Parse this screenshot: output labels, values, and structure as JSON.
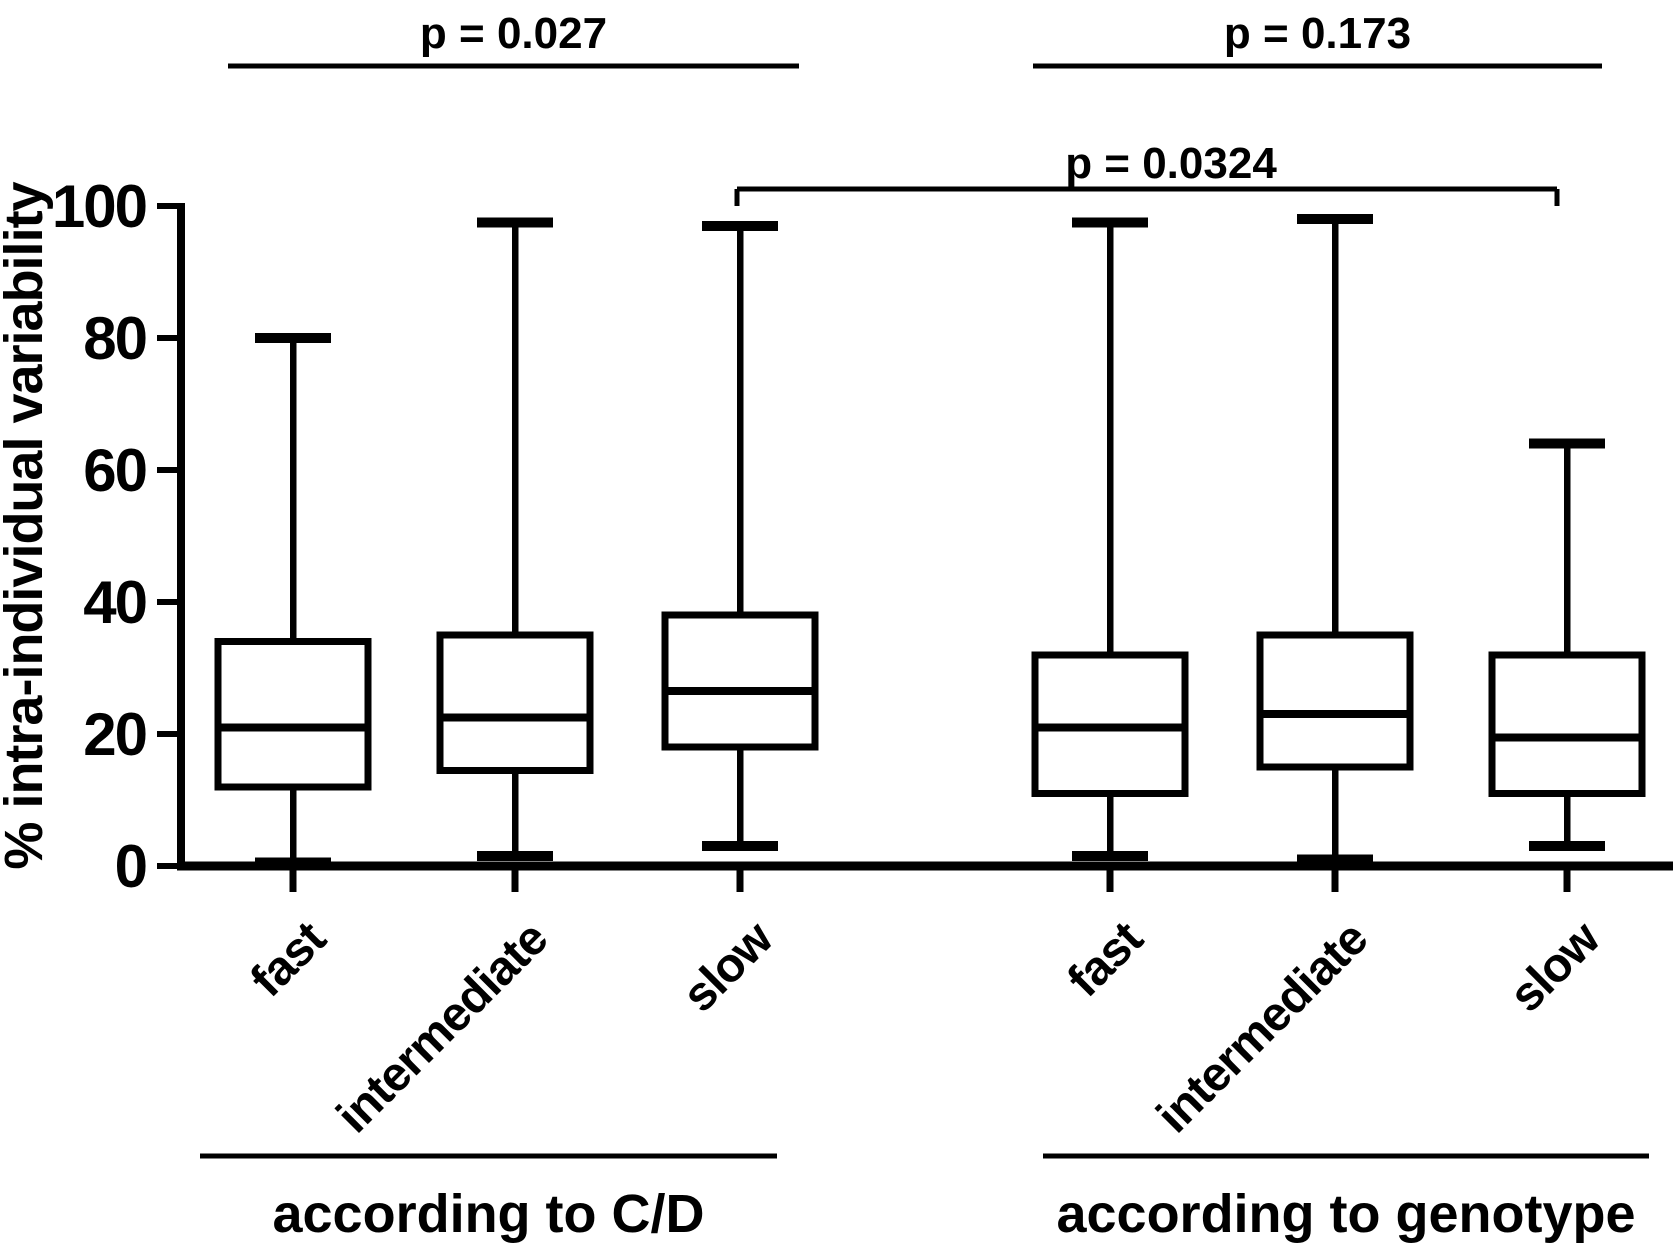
{
  "figure": {
    "background": "#ffffff",
    "ink_color": "#000000"
  },
  "chart_data": {
    "type": "boxplot",
    "title": "",
    "ylabel": "% intra-individual variability",
    "xlabel": "",
    "ylim": [
      0,
      100
    ],
    "yticks": [
      0,
      20,
      40,
      60,
      80,
      100
    ],
    "grid": false,
    "legend": "none",
    "groups": [
      {
        "label": "according to C/D",
        "p_value_label": "p = 0.027"
      },
      {
        "label": "according to genotype",
        "p_value_label": "p = 0.173"
      }
    ],
    "cross_group_comparison": {
      "label": "p = 0.0324",
      "from_category": "slow (according to C/D)",
      "to_category": "slow (according to genotype)"
    },
    "boxes": [
      {
        "group": "according to C/D",
        "category": "fast",
        "whisker_low": 0.5,
        "q1": 12.0,
        "median": 21.0,
        "q3": 34.0,
        "whisker_high": 80.0
      },
      {
        "group": "according to C/D",
        "category": "intermediate",
        "whisker_low": 1.5,
        "q1": 14.5,
        "median": 22.5,
        "q3": 35.0,
        "whisker_high": 97.5
      },
      {
        "group": "according to C/D",
        "category": "slow",
        "whisker_low": 3.0,
        "q1": 18.0,
        "median": 26.5,
        "q3": 38.0,
        "whisker_high": 97.0
      },
      {
        "group": "according to genotype",
        "category": "fast",
        "whisker_low": 1.5,
        "q1": 11.0,
        "median": 21.0,
        "q3": 32.0,
        "whisker_high": 97.5
      },
      {
        "group": "according to genotype",
        "category": "intermediate",
        "whisker_low": 1.0,
        "q1": 15.0,
        "median": 23.0,
        "q3": 35.0,
        "whisker_high": 98.0
      },
      {
        "group": "according to genotype",
        "category": "slow",
        "whisker_low": 3.0,
        "q1": 11.0,
        "median": 19.5,
        "q3": 32.0,
        "whisker_high": 64.0
      }
    ]
  }
}
